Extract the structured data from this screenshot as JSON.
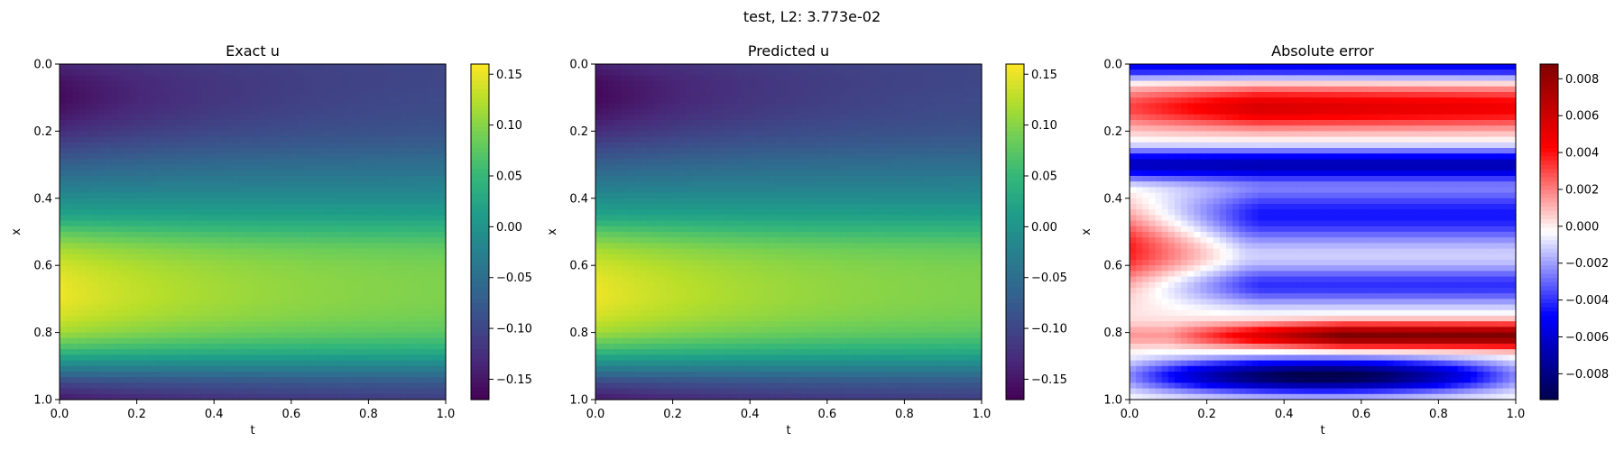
{
  "suptitle": "test, L2: 3.773e-02",
  "chart_data": [
    {
      "type": "heatmap",
      "title": "Exact u",
      "xlabel": "t",
      "ylabel": "x",
      "xlim": [
        0.0,
        1.0
      ],
      "ylim": [
        1.0,
        0.0
      ],
      "xticks": [
        "0.0",
        "0.2",
        "0.4",
        "0.6",
        "0.8",
        "1.0"
      ],
      "yticks": [
        "0.0",
        "0.2",
        "0.4",
        "0.6",
        "0.8",
        "1.0"
      ],
      "colormap": "viridis",
      "colorbar": {
        "range": [
          -0.17,
          0.16
        ],
        "ticks": [
          "0.15",
          "0.10",
          "0.05",
          "0.00",
          "−0.05",
          "−0.10",
          "−0.15"
        ],
        "tick_values": [
          0.15,
          0.1,
          0.05,
          0.0,
          -0.05,
          -0.1,
          -0.15
        ]
      },
      "field_profile": {
        "x": [
          0.0,
          0.05,
          0.1,
          0.15,
          0.2,
          0.25,
          0.3,
          0.35,
          0.4,
          0.45,
          0.5,
          0.55,
          0.6,
          0.65,
          0.7,
          0.75,
          0.8,
          0.85,
          0.9,
          0.95,
          1.0
        ],
        "u_at_t0": [
          -0.135,
          -0.155,
          -0.162,
          -0.15,
          -0.128,
          -0.1,
          -0.07,
          -0.04,
          -0.01,
          0.02,
          0.075,
          0.115,
          0.138,
          0.15,
          0.152,
          0.14,
          0.115,
          0.06,
          -0.02,
          -0.1,
          -0.15
        ],
        "u_at_t1": [
          -0.1,
          -0.1,
          -0.097,
          -0.093,
          -0.085,
          -0.07,
          -0.05,
          -0.03,
          -0.01,
          0.015,
          0.05,
          0.08,
          0.092,
          0.095,
          0.095,
          0.09,
          0.075,
          0.04,
          -0.02,
          -0.08,
          -0.11
        ]
      }
    },
    {
      "type": "heatmap",
      "title": "Predicted u",
      "xlabel": "t",
      "ylabel": "x",
      "xlim": [
        0.0,
        1.0
      ],
      "ylim": [
        1.0,
        0.0
      ],
      "xticks": [
        "0.0",
        "0.2",
        "0.4",
        "0.6",
        "0.8",
        "1.0"
      ],
      "yticks": [
        "0.0",
        "0.2",
        "0.4",
        "0.6",
        "0.8",
        "1.0"
      ],
      "colormap": "viridis",
      "colorbar": {
        "range": [
          -0.17,
          0.16
        ],
        "ticks": [
          "0.15",
          "0.10",
          "0.05",
          "0.00",
          "−0.05",
          "−0.10",
          "−0.15"
        ],
        "tick_values": [
          0.15,
          0.1,
          0.05,
          0.0,
          -0.05,
          -0.1,
          -0.15
        ]
      },
      "field_profile": {
        "x": [
          0.0,
          0.05,
          0.1,
          0.15,
          0.2,
          0.25,
          0.3,
          0.35,
          0.4,
          0.45,
          0.5,
          0.55,
          0.6,
          0.65,
          0.7,
          0.75,
          0.8,
          0.85,
          0.9,
          0.95,
          1.0
        ],
        "u_at_t0": [
          -0.138,
          -0.16,
          -0.165,
          -0.152,
          -0.128,
          -0.1,
          -0.07,
          -0.04,
          -0.01,
          0.02,
          0.075,
          0.115,
          0.138,
          0.15,
          0.152,
          0.14,
          0.115,
          0.06,
          -0.02,
          -0.1,
          -0.15
        ],
        "u_at_t1": [
          -0.1,
          -0.1,
          -0.097,
          -0.093,
          -0.085,
          -0.07,
          -0.05,
          -0.03,
          -0.01,
          0.015,
          0.05,
          0.08,
          0.092,
          0.095,
          0.095,
          0.09,
          0.075,
          0.04,
          -0.02,
          -0.08,
          -0.11
        ]
      }
    },
    {
      "type": "heatmap",
      "title": "Absolute error",
      "xlabel": "t",
      "ylabel": "x",
      "xlim": [
        0.0,
        1.0
      ],
      "ylim": [
        1.0,
        0.0
      ],
      "xticks": [
        "0.0",
        "0.2",
        "0.4",
        "0.6",
        "0.8",
        "1.0"
      ],
      "yticks": [
        "0.0",
        "0.2",
        "0.4",
        "0.6",
        "0.8",
        "1.0"
      ],
      "colormap": "seismic",
      "colorbar": {
        "range": [
          -0.0094,
          0.0088
        ],
        "ticks": [
          "0.008",
          "0.006",
          "0.004",
          "0.002",
          "0.000",
          "−0.002",
          "−0.004",
          "−0.006",
          "−0.008"
        ],
        "tick_values": [
          0.008,
          0.006,
          0.004,
          0.002,
          0.0,
          -0.002,
          -0.004,
          -0.006,
          -0.008
        ]
      },
      "field_bands": [
        {
          "x_center": 0.01,
          "amp": -0.005,
          "width": 0.035
        },
        {
          "x_center": 0.13,
          "amp": 0.0055,
          "width": 0.06
        },
        {
          "x_center": 0.3,
          "amp": -0.0065,
          "width": 0.045
        },
        {
          "x_center": 0.45,
          "amp": -0.0045,
          "width": 0.09
        },
        {
          "x_center": 0.66,
          "amp": -0.004,
          "width": 0.06
        },
        {
          "x_center": 0.81,
          "amp": 0.0075,
          "width": 0.035
        },
        {
          "x_center": 0.93,
          "amp": -0.008,
          "width": 0.05
        }
      ]
    }
  ]
}
